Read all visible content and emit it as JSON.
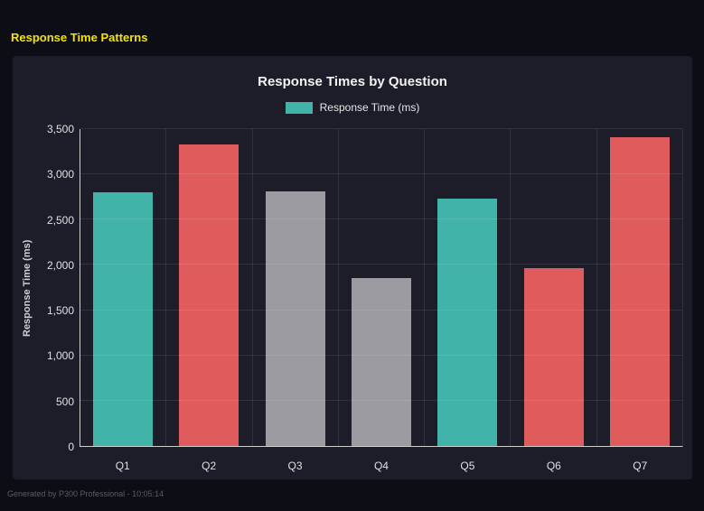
{
  "page": {
    "header": "Response Time Patterns",
    "footer": "Generated by P300 Professional - 10:05:14"
  },
  "chart_data": {
    "type": "bar",
    "title": "Response Times by Question",
    "categories": [
      "Q1",
      "Q2",
      "Q3",
      "Q4",
      "Q5",
      "Q6",
      "Q7"
    ],
    "values": [
      2800,
      3330,
      2810,
      1850,
      2730,
      1960,
      3410
    ],
    "bar_colors": [
      "#42b3a8",
      "#e05c5c",
      "#9b9ba1",
      "#9b9ba1",
      "#42b3a8",
      "#e05c5c",
      "#e05c5c"
    ],
    "xlabel": "",
    "ylabel": "Response Time (ms)",
    "ylim": [
      0,
      3500
    ],
    "yticks": [
      0,
      500,
      1000,
      1500,
      2000,
      2500,
      3000,
      3500
    ],
    "ytick_labels": [
      "0",
      "500",
      "1,000",
      "1,500",
      "2,000",
      "2,500",
      "3,000",
      "3,500"
    ],
    "legend": [
      "Response Time (ms)"
    ],
    "legend_position": "top",
    "legend_swatch_color": "#42b3a8",
    "grid": true
  }
}
